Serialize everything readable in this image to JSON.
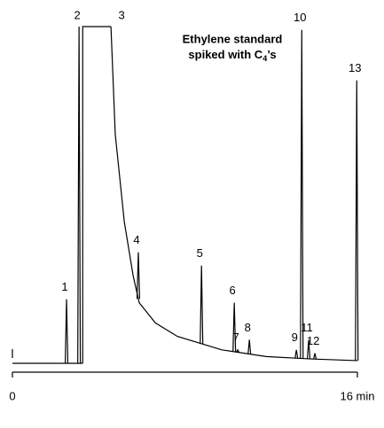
{
  "chart_data": {
    "type": "chromatogram",
    "title": {
      "line1": "Ethylene standard",
      "line2": "spiked with C",
      "subscript": "4",
      "line2_end": "’s"
    },
    "xlim": [
      0,
      16
    ],
    "xticks": [
      0,
      {
        "value": 16,
        "label": "16 min"
      }
    ],
    "color": "#000000",
    "peaks": [
      {
        "label": "1",
        "t": 2.51,
        "height": 19
      },
      {
        "label": "2",
        "t": 3.09,
        "height": 100
      },
      {
        "label": "3",
        "t_start": 3.26,
        "t_end": 4.57,
        "height": 100
      },
      {
        "label": "4",
        "t": 5.84,
        "height": 33
      },
      {
        "label": "5",
        "t": 8.77,
        "height": 29
      },
      {
        "label": "6",
        "t": 10.29,
        "height": 18
      },
      {
        "label": "7",
        "t": 10.45,
        "height": 4
      },
      {
        "label": "8",
        "t": 10.99,
        "height": 7
      },
      {
        "label": "9",
        "t": 13.17,
        "height": 4
      },
      {
        "label": "10",
        "t": 13.42,
        "height": 99
      },
      {
        "label": "11",
        "t": 13.74,
        "height": 7
      },
      {
        "label": "12",
        "t": 14.03,
        "height": 3
      },
      {
        "label": "13",
        "t": 15.97,
        "height": 84
      }
    ],
    "tail": {
      "x": [
        4.57,
        4.77,
        5.19,
        5.6,
        5.88,
        6.63,
        7.65,
        9.71,
        11.77,
        13.83,
        16
      ],
      "y": [
        100,
        68,
        42,
        26,
        18,
        12,
        8,
        4,
        2,
        1.3,
        0.8
      ]
    }
  }
}
